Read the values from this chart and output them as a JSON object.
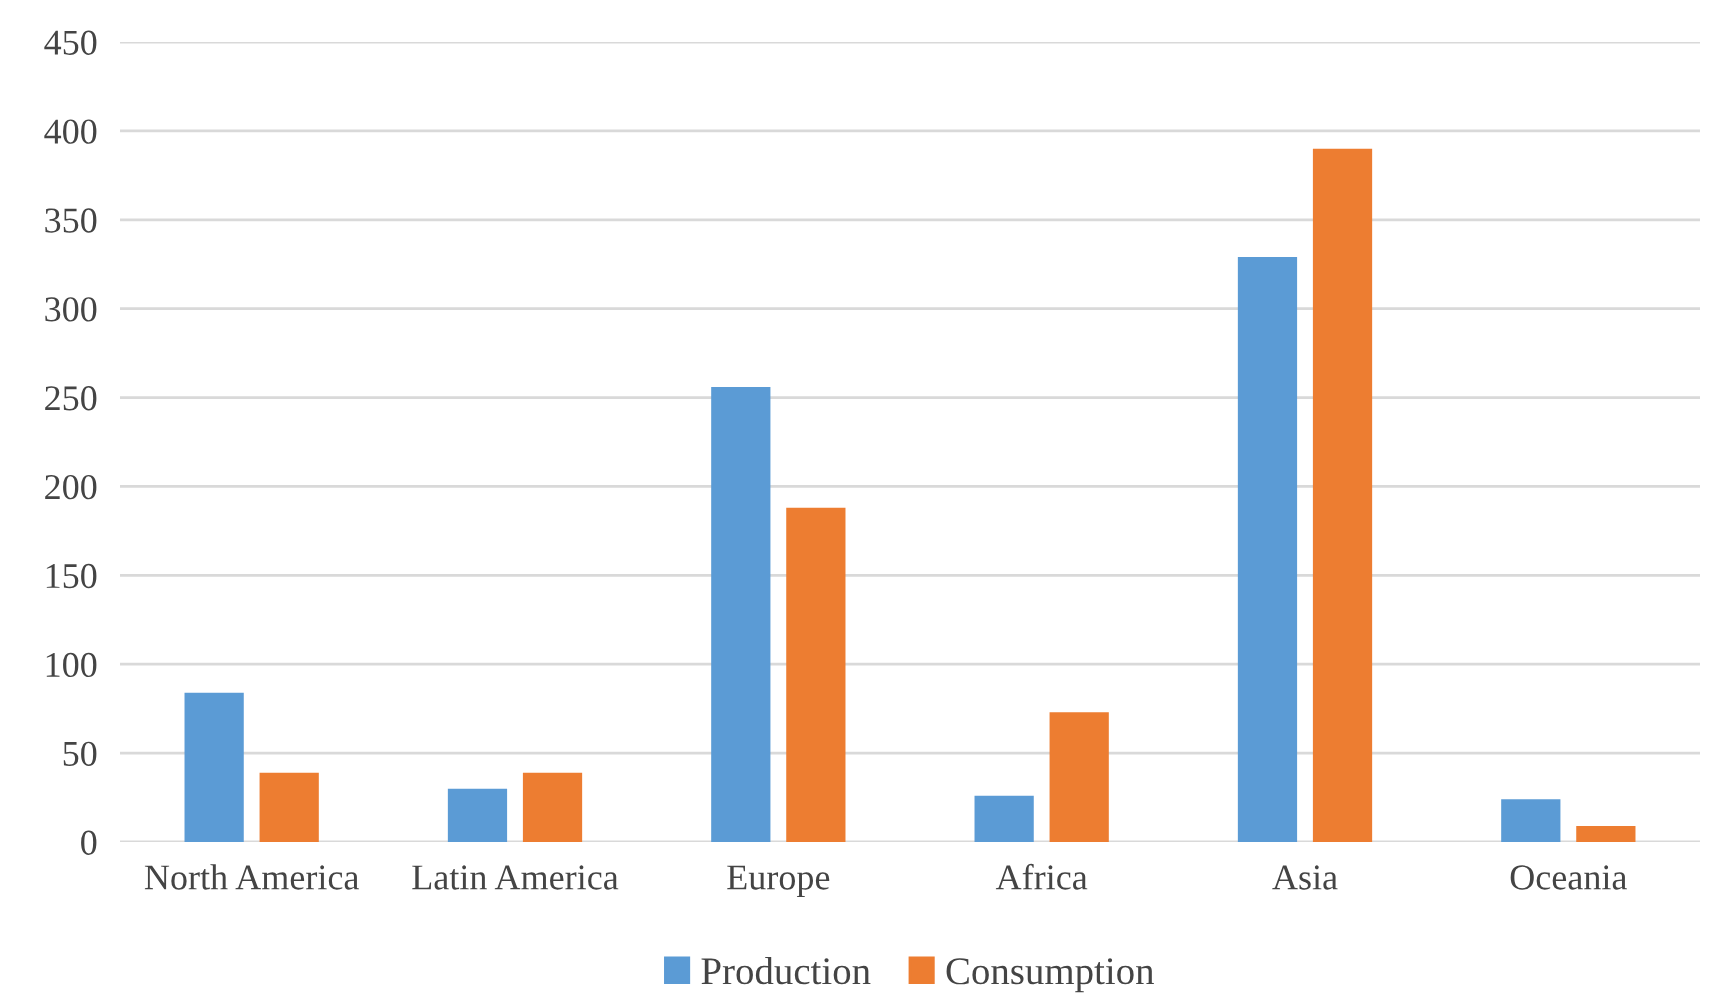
{
  "chart_data": {
    "type": "bar",
    "categories": [
      "North America",
      "Latin America",
      "Europe",
      "Africa",
      "Asia",
      "Oceania"
    ],
    "series": [
      {
        "name": "Production",
        "color": "#5b9bd5",
        "values": [
          84,
          30,
          256,
          26,
          329,
          24
        ]
      },
      {
        "name": "Consumption",
        "color": "#ed7d31",
        "values": [
          39,
          39,
          188,
          73,
          390,
          9
        ]
      }
    ],
    "ylim": [
      0,
      450
    ],
    "yticks": [
      0,
      50,
      100,
      150,
      200,
      250,
      300,
      350,
      400,
      450
    ],
    "grid": "y",
    "legend": "bottom"
  }
}
